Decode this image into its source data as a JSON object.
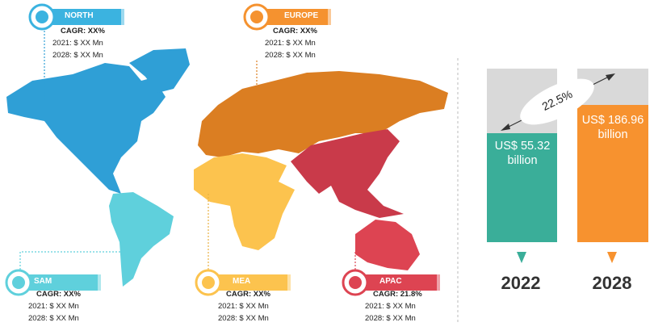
{
  "regions": [
    {
      "name": "NORTH",
      "cagr": "CAGR: XX%",
      "y2021": "2021: $ XX Mn",
      "y2028": "2028: $ XX Mn"
    },
    {
      "name": "EUROPE",
      "cagr": "CAGR: XX%",
      "y2021": "2021: $ XX Mn",
      "y2028": "2028: $ XX Mn"
    },
    {
      "name": "SAM",
      "cagr": "CAGR: XX%",
      "y2021": "2021: $ XX Mn",
      "y2028": "2028: $ XX Mn"
    },
    {
      "name": "MEA",
      "cagr": "CAGR: XX%",
      "y2021": "2021: $ XX Mn",
      "y2028": "2028: $ XX Mn"
    },
    {
      "name": "APAC",
      "cagr": "CAGR: 21.8%",
      "y2021": "2021: $ XX Mn",
      "y2028": "2028: $ XX Mn"
    }
  ],
  "growth": {
    "rate": "22.5%",
    "bars": [
      {
        "value": "US$ 55.32 billion",
        "year": "2022"
      },
      {
        "value": "US$ 186.96 billion",
        "year": "2028"
      }
    ]
  }
}
